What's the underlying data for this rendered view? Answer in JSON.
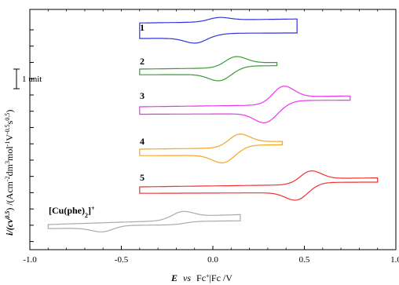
{
  "chart_data": {
    "type": "line",
    "title": "",
    "xlabel": {
      "bold_italic": "E",
      "italic": "vs",
      "plain": "Fc",
      "sup": "+",
      "plain2": "|Fc /V"
    },
    "ylabel": {
      "bold_italic": "i/(cv",
      "sup1": "0.5",
      "mid": ")  /(Acm",
      "sup2": "-2",
      "mid2": "dm",
      "sup3": "3",
      "mid3": "mol",
      "sup4": "-1",
      "mid4": "V",
      "sup5": "-0.5",
      "mid5": "s",
      "sup6": "0.5",
      "end": ")"
    },
    "xlim": [
      -1.0,
      1.0
    ],
    "x_ticks": [
      -1.0,
      -0.5,
      0.0,
      0.5,
      1.0
    ],
    "x_tick_labels": [
      "-1.0",
      "-0.5",
      "0.0",
      "0.5",
      "1.0"
    ],
    "y_tick_count": 14,
    "scale_bar_label": "1 unit",
    "grid": false,
    "series": [
      {
        "label": "1",
        "color": "#3333dd",
        "E_start": -0.4,
        "E_switch": 0.46,
        "baseline": 0.55,
        "slope": 0.12,
        "peak_anodic": {
          "E": 0.03,
          "height": 0.18
        },
        "peak_cathodic": {
          "E": -0.09,
          "depth": 0.32
        }
      },
      {
        "label": "2",
        "color": "#3a9a3a",
        "E_start": -0.4,
        "E_switch": 0.35,
        "baseline": 0.0,
        "slope": 0.12,
        "peak_anodic": {
          "E": 0.12,
          "height": 0.45
        },
        "peak_cathodic": {
          "E": 0.04,
          "depth": 0.42
        }
      },
      {
        "label": "3",
        "color": "#ee33ee",
        "E_start": -0.4,
        "E_switch": 0.75,
        "baseline": 0.0,
        "slope": 0.12,
        "peak_anodic": {
          "E": 0.38,
          "height": 0.75
        },
        "peak_cathodic": {
          "E": 0.29,
          "depth": 0.6
        }
      },
      {
        "label": "4",
        "color": "#f5a623",
        "E_start": -0.4,
        "E_switch": 0.38,
        "baseline": 0.0,
        "slope": 0.12,
        "peak_anodic": {
          "E": 0.14,
          "height": 0.55
        },
        "peak_cathodic": {
          "E": 0.06,
          "depth": 0.5
        }
      },
      {
        "label": "5",
        "color": "#ee3333",
        "E_start": -0.4,
        "E_switch": 0.9,
        "baseline": 0.0,
        "slope": 0.12,
        "peak_anodic": {
          "E": 0.53,
          "height": 0.55
        },
        "peak_cathodic": {
          "E": 0.46,
          "depth": 0.5
        }
      },
      {
        "label": "[Cu(phe)2]+",
        "color": "#aaaaaa",
        "E_start": -0.9,
        "E_switch": 0.15,
        "baseline": 0.0,
        "slope": 0.3,
        "peak_anodic": {
          "E": -0.17,
          "height": 0.35
        },
        "peak_cathodic": {
          "E": -0.6,
          "depth": 0.25
        }
      }
    ],
    "complex_label": {
      "main": "[Cu(phe)",
      "sub": "2",
      "close": "]",
      "sup": "+"
    }
  }
}
